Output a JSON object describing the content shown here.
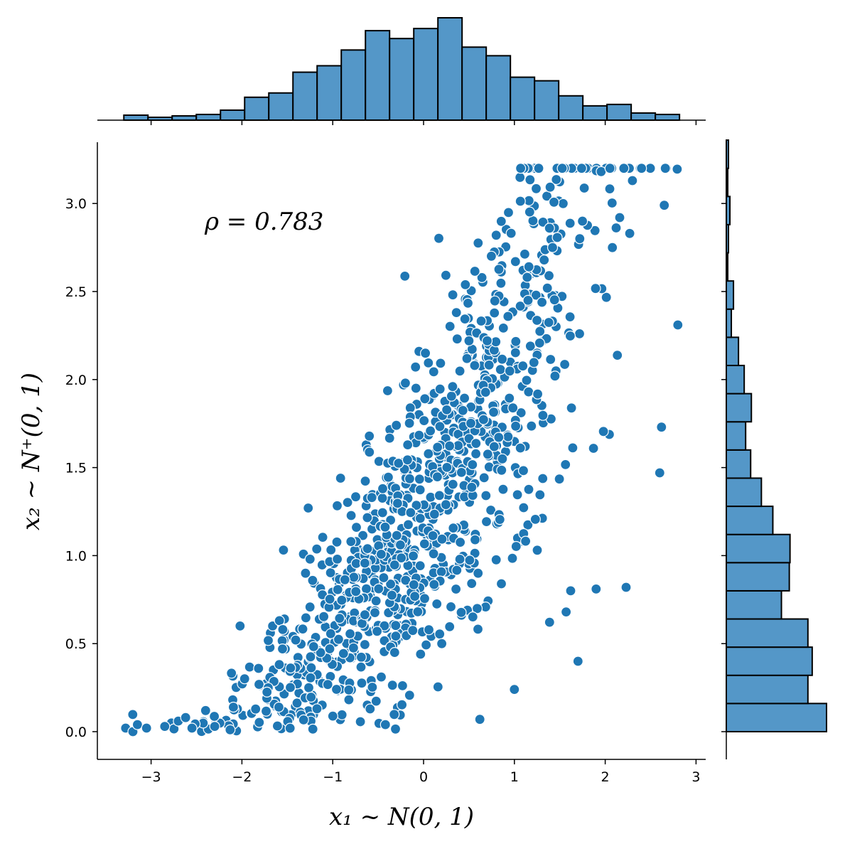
{
  "chart_data": {
    "type": "scatter",
    "marginal": "histogram",
    "title": "",
    "xlabel": "x₁ ~ N(0, 1)",
    "ylabel": "x₂ ~ N⁺(0, 1)",
    "annotation": "ρ = 0.783",
    "correlation": 0.783,
    "xlim": [
      -3.6,
      3.1
    ],
    "ylim": [
      -0.15,
      3.35
    ],
    "xticks": [
      {
        "value": -3,
        "label": "−3"
      },
      {
        "value": -2,
        "label": "−2"
      },
      {
        "value": -1,
        "label": "−1"
      },
      {
        "value": 0,
        "label": "0"
      },
      {
        "value": 1,
        "label": "1"
      },
      {
        "value": 2,
        "label": "2"
      },
      {
        "value": 3,
        "label": "3"
      }
    ],
    "yticks": [
      {
        "value": 0.0,
        "label": "0.0"
      },
      {
        "value": 0.5,
        "label": "0.5"
      },
      {
        "value": 1.0,
        "label": "1.0"
      },
      {
        "value": 1.5,
        "label": "1.5"
      },
      {
        "value": 2.0,
        "label": "2.0"
      },
      {
        "value": 2.5,
        "label": "2.5"
      },
      {
        "value": 3.0,
        "label": "3.0"
      }
    ],
    "colors": {
      "point": "#1f77b4",
      "bar": "#5497c8",
      "edge": "#000000"
    },
    "x_hist": {
      "start": -3.3,
      "bin_width": 0.266,
      "counts": [
        7,
        4,
        6,
        8,
        14,
        32,
        38,
        67,
        76,
        98,
        125,
        114,
        128,
        143,
        102,
        90,
        60,
        55,
        34,
        20,
        22,
        10,
        8
      ]
    },
    "y_hist": {
      "start": 0.0,
      "bin_width": 0.16,
      "counts": [
        140,
        114,
        120,
        114,
        77,
        88,
        89,
        65,
        49,
        34,
        27,
        35,
        25,
        17,
        7,
        10,
        2,
        3,
        5,
        2,
        3
      ]
    },
    "points_sample": [
      [
        -3.28,
        0.02
      ],
      [
        -3.2,
        0.0
      ],
      [
        -3.15,
        0.04
      ],
      [
        -3.05,
        0.02
      ],
      [
        -2.85,
        0.03
      ],
      [
        -2.7,
        0.06
      ],
      [
        -2.62,
        0.08
      ],
      [
        -2.55,
        0.02
      ],
      [
        -2.4,
        0.12
      ],
      [
        -2.3,
        0.03
      ],
      [
        -2.02,
        0.6
      ],
      [
        -1.97,
        0.3
      ],
      [
        -1.55,
        0.58
      ],
      [
        -1.3,
        0.9
      ],
      [
        -1.27,
        1.27
      ],
      [
        -1.25,
        0.98
      ],
      [
        -0.95,
        0.98
      ],
      [
        -0.8,
        1.08
      ],
      [
        -0.57,
        1.33
      ],
      [
        -0.45,
        1.38
      ],
      [
        -0.3,
        1.74
      ],
      [
        -0.2,
        1.98
      ],
      [
        -0.05,
        2.16
      ],
      [
        0.02,
        2.15
      ],
      [
        0.32,
        1.96
      ],
      [
        0.5,
        2.22
      ],
      [
        0.7,
        2.22
      ],
      [
        0.8,
        2.82
      ],
      [
        1.15,
        2.45
      ],
      [
        1.42,
        2.75
      ],
      [
        1.72,
        2.8
      ],
      [
        1.75,
        2.9
      ],
      [
        2.16,
        2.92
      ],
      [
        2.27,
        2.83
      ],
      [
        2.3,
        3.13
      ],
      [
        2.4,
        3.2
      ],
      [
        2.65,
        2.99
      ],
      [
        2.8,
        2.31
      ],
      [
        2.62,
        1.73
      ],
      [
        2.6,
        1.47
      ],
      [
        2.23,
        0.82
      ],
      [
        1.7,
        0.4
      ],
      [
        1.62,
        0.8
      ],
      [
        1.9,
        0.81
      ],
      [
        1.57,
        0.68
      ],
      [
        1.0,
        0.24
      ],
      [
        0.62,
        0.07
      ],
      [
        -0.42,
        0.04
      ],
      [
        0.2,
        0.5
      ],
      [
        0.6,
        0.9
      ]
    ]
  }
}
